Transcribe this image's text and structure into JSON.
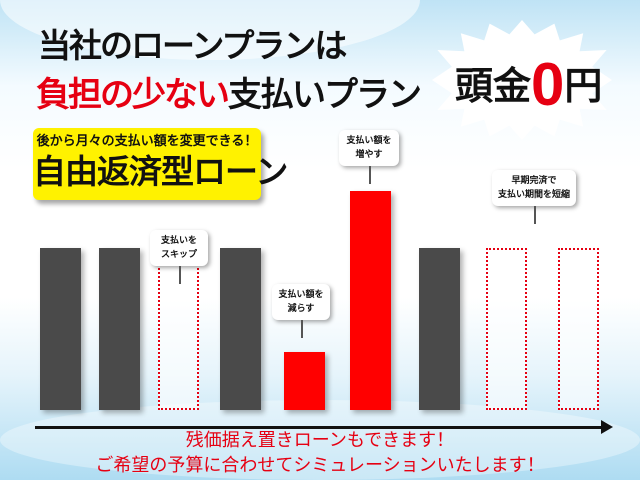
{
  "headline": {
    "line1": "当社のローンプランは",
    "line2_red": "負担の少ない",
    "line2_black": "支払いプラン"
  },
  "badge": {
    "prefix": "頭金",
    "zero": "0",
    "suffix": "円"
  },
  "feature_box": {
    "subtitle": "後から月々の支払い額を変更できる！",
    "title": "自由返済型ローン"
  },
  "bars": [
    {
      "kind": "gray",
      "level": 1
    },
    {
      "kind": "gray",
      "level": 1
    },
    {
      "kind": "dash",
      "level": 1
    },
    {
      "kind": "gray",
      "level": 1
    },
    {
      "kind": "red",
      "level": 0.36
    },
    {
      "kind": "red",
      "level": 1.35
    },
    {
      "kind": "gray",
      "level": 1
    },
    {
      "kind": "dash",
      "level": 1
    },
    {
      "kind": "dash",
      "level": 1
    }
  ],
  "callouts": {
    "skip": {
      "l1": "支払いを",
      "l2": "スキップ"
    },
    "decrease": {
      "l1": "支払い額を",
      "l2": "減らす"
    },
    "increase": {
      "l1": "支払い額を",
      "l2": "増やす"
    },
    "shorten": {
      "l1": "早期完済で",
      "l2": "支払い期間を短縮"
    }
  },
  "footer": {
    "line1": "残価据え置きローンもできます！",
    "line2": "ご希望の予算に合わせてシミュレーションいたします！"
  },
  "colors": {
    "red": "#e60012",
    "bar_gray": "#4a4a4a",
    "highlight_yellow": "#fff200"
  }
}
